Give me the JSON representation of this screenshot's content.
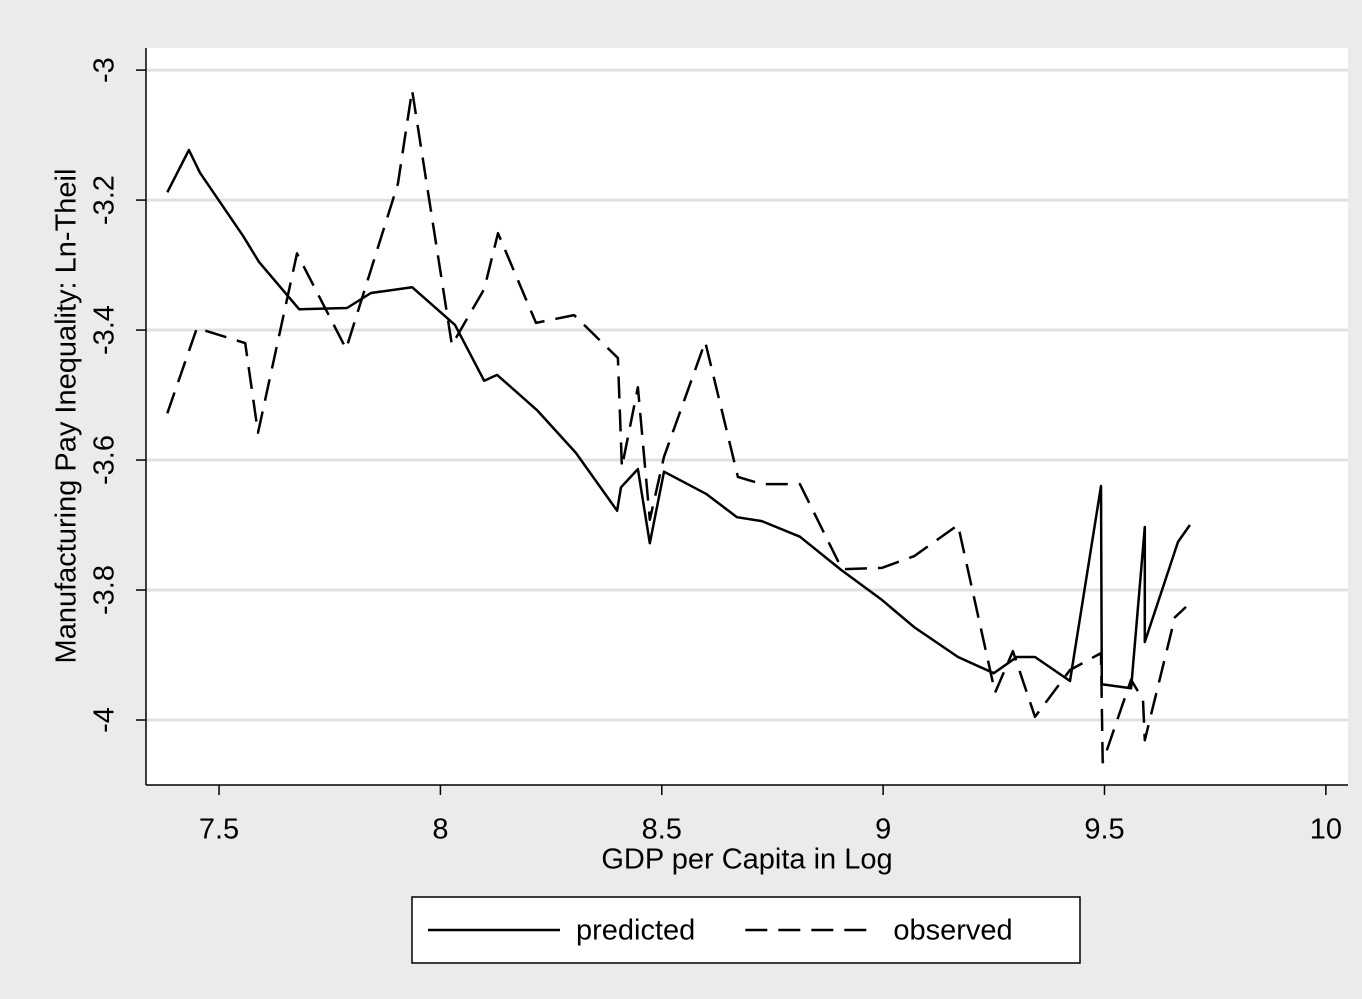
{
  "chart_data": {
    "type": "line",
    "x_label": "GDP per Capita in Log",
    "y_label": "Manufacturing Pay Inequality: Ln-Theil",
    "xlim": [
      7.335,
      10.05
    ],
    "ylim": [
      -4.1,
      -2.966
    ],
    "xticks": [
      7.5,
      8,
      8.5,
      9,
      9.5,
      10
    ],
    "yticks": [
      -3,
      -3.2,
      -3.4,
      -3.6,
      -3.8,
      -4
    ],
    "grid": true,
    "legend": "bottom",
    "series": [
      {
        "name": "predicted",
        "color": "#000000",
        "line_style": "solid",
        "x": [
          7.383,
          7.432,
          7.457,
          7.554,
          7.59,
          7.681,
          7.789,
          7.843,
          7.936,
          8.033,
          8.099,
          8.128,
          8.218,
          8.306,
          8.399,
          8.408,
          8.446,
          8.473,
          8.505,
          8.6,
          8.67,
          8.726,
          8.812,
          8.905,
          8.995,
          9.07,
          9.169,
          9.25,
          9.302,
          9.343,
          9.422,
          9.492,
          9.494,
          9.56,
          9.591,
          9.591,
          9.666,
          9.693
        ],
        "values": [
          -3.188,
          -3.123,
          -3.158,
          -3.255,
          -3.295,
          -3.368,
          -3.366,
          -3.343,
          -3.334,
          -3.392,
          -3.478,
          -3.469,
          -3.523,
          -3.589,
          -3.678,
          -3.642,
          -3.614,
          -3.728,
          -3.618,
          -3.652,
          -3.688,
          -3.694,
          -3.718,
          -3.769,
          -3.814,
          -3.857,
          -3.903,
          -3.928,
          -3.903,
          -3.903,
          -3.94,
          -3.64,
          -3.945,
          -3.951,
          -3.703,
          -3.88,
          -3.726,
          -3.7
        ]
      },
      {
        "name": "observed",
        "color": "#000000",
        "line_style": "dashed",
        "x": [
          7.383,
          7.45,
          7.559,
          7.588,
          7.676,
          7.787,
          7.904,
          7.936,
          8.026,
          8.099,
          8.13,
          8.216,
          8.302,
          8.401,
          8.41,
          8.446,
          8.473,
          8.505,
          8.598,
          8.672,
          8.726,
          8.812,
          8.907,
          8.997,
          9.07,
          9.169,
          9.253,
          9.293,
          9.343,
          9.422,
          9.492,
          9.496,
          9.56,
          9.587,
          9.591,
          9.659,
          9.684
        ],
        "values": [
          -3.528,
          -3.397,
          -3.42,
          -3.558,
          -3.282,
          -3.429,
          -3.175,
          -3.031,
          -3.423,
          -3.337,
          -3.251,
          -3.389,
          -3.377,
          -3.443,
          -3.611,
          -3.488,
          -3.692,
          -3.595,
          -3.418,
          -3.626,
          -3.637,
          -3.637,
          -3.768,
          -3.766,
          -3.748,
          -3.7,
          -3.958,
          -3.894,
          -3.995,
          -3.923,
          -3.897,
          -4.065,
          -3.938,
          -3.969,
          -4.031,
          -3.842,
          -3.826
        ]
      }
    ]
  }
}
